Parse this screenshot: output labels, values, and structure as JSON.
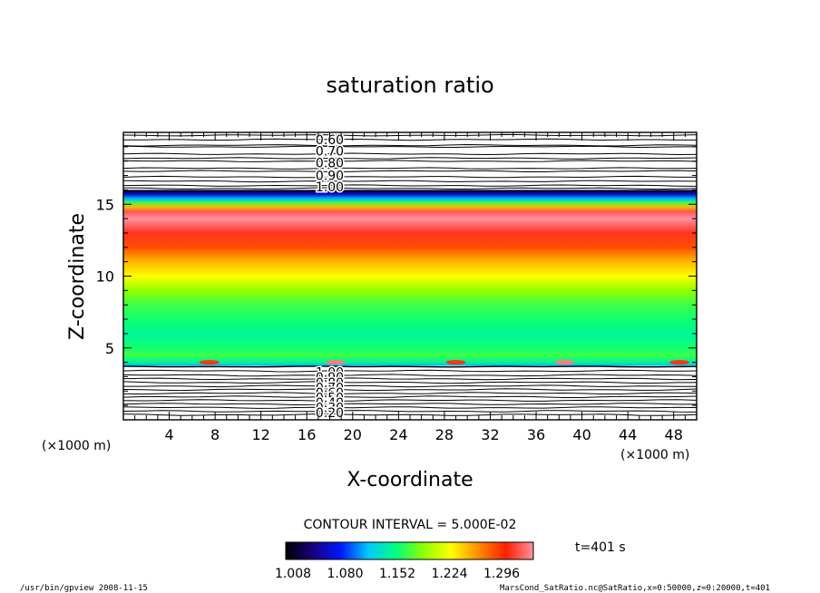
{
  "chart_data": {
    "type": "heatmap",
    "title": "saturation ratio",
    "xlabel": "X-coordinate",
    "ylabel": "Z-coordinate",
    "x_unit_left": "(×1000 m)",
    "x_unit_right": "(×1000 m)",
    "xlim": [
      0,
      50
    ],
    "ylim": [
      0,
      20
    ],
    "x_ticks": [
      "4",
      "8",
      "12",
      "16",
      "20",
      "24",
      "28",
      "32",
      "36",
      "40",
      "44",
      "48"
    ],
    "y_ticks": [
      "5",
      "10",
      "15"
    ],
    "profile_z": [
      3.75,
      4.0,
      4.5,
      5.0,
      6.0,
      7.0,
      8.0,
      9.0,
      10.0,
      11.0,
      12.0,
      13.0,
      14.0,
      14.5,
      14.8,
      15.1,
      15.4,
      15.7,
      16.0
    ],
    "profile_value": [
      1.1,
      1.13,
      1.15,
      1.14,
      1.13,
      1.14,
      1.15,
      1.17,
      1.2,
      1.22,
      1.25,
      1.27,
      1.3,
      1.28,
      1.22,
      1.15,
      1.1,
      1.06,
      1.008
    ],
    "upper_contours": {
      "labels": [
        "0.60",
        "0.70",
        "0.80",
        "0.90",
        "1.00"
      ],
      "z": [
        17.5,
        18.0,
        18.5,
        19.0,
        19.5,
        19.8,
        19.1,
        18.2,
        17.3,
        16.9,
        16.6,
        16.3,
        16.1
      ]
    },
    "lower_contours": {
      "labels": [
        "1.00",
        "0.90",
        "0.80",
        "0.70",
        "0.60",
        "0.50",
        "0.40",
        "0.30",
        "0.20"
      ],
      "z": [
        3.4,
        3.1,
        2.85,
        2.6,
        2.35,
        2.1,
        1.85,
        1.6,
        1.35,
        1.1,
        0.85,
        0.6,
        0.35
      ]
    },
    "contour_interval": "CONTOUR INTERVAL = 5.000E-02",
    "colorbar": {
      "min": 1.008,
      "max": 1.296,
      "labels": [
        "1.008",
        "1.080",
        "1.152",
        "1.224",
        "1.296"
      ],
      "stops": [
        "#000000",
        "#1a0080",
        "#0018ff",
        "#00c8ff",
        "#00ff80",
        "#8cff00",
        "#ffff00",
        "#ff8c00",
        "#ff2000",
        "#ff90a0"
      ]
    },
    "time_label": "t=401 s"
  },
  "footer": {
    "left": "/usr/bin/gpview   2008-11-15",
    "right": "MarsCond_SatRatio.nc@SatRatio,x=0:50000,z=0:20000,t=401"
  }
}
